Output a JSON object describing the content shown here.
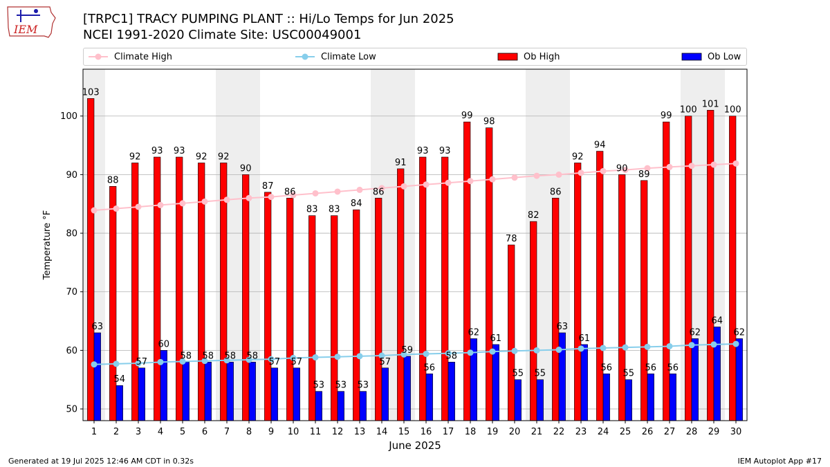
{
  "header": {
    "title_line1": "[TRPC1] TRACY PUMPING PLANT :: Hi/Lo Temps for Jun 2025",
    "title_line2": "NCEI 1991-2020 Climate Site: USC00049001",
    "logo_text": "IEM"
  },
  "legend": {
    "climate_high": "Climate High",
    "climate_low": "Climate Low",
    "ob_high": "Ob High",
    "ob_low": "Ob Low"
  },
  "footer": {
    "generated": "Generated at 19 Jul 2025 12:46 AM CDT in 0.32s",
    "app": "IEM Autoplot App #17"
  },
  "colors": {
    "ob_high": "#ff0000",
    "ob_low": "#0000ff",
    "climate_high": "#ffc0cb",
    "climate_low": "#87ceeb",
    "weekend_band": "#eeeeee",
    "grid": "#b0b0b0"
  },
  "chart_data": {
    "type": "bar",
    "xlabel": "June 2025",
    "ylabel": "Temperature °F",
    "ylim": [
      48,
      108
    ],
    "yticks": [
      50,
      60,
      70,
      80,
      90,
      100
    ],
    "grid": "horizontal",
    "legend_position": "top",
    "shaded_days": [
      1,
      7,
      8,
      14,
      15,
      21,
      22,
      28,
      29
    ],
    "categories": [
      "1",
      "2",
      "3",
      "4",
      "5",
      "6",
      "7",
      "8",
      "9",
      "10",
      "11",
      "12",
      "13",
      "14",
      "15",
      "16",
      "17",
      "18",
      "19",
      "20",
      "21",
      "22",
      "23",
      "24",
      "25",
      "26",
      "27",
      "28",
      "29",
      "30"
    ],
    "series": [
      {
        "name": "Ob High",
        "kind": "bar",
        "values": [
          103,
          88,
          92,
          93,
          93,
          92,
          92,
          90,
          87,
          86,
          83,
          83,
          84,
          86,
          91,
          93,
          93,
          99,
          98,
          78,
          82,
          86,
          92,
          94,
          90,
          89,
          99,
          100,
          101,
          100
        ]
      },
      {
        "name": "Ob Low",
        "kind": "bar",
        "values": [
          63,
          54,
          57,
          60,
          58,
          58,
          58,
          58,
          57,
          57,
          53,
          53,
          53,
          57,
          59,
          56,
          58,
          62,
          61,
          55,
          55,
          63,
          61,
          56,
          55,
          56,
          56,
          62,
          64,
          62
        ]
      },
      {
        "name": "Climate High",
        "kind": "line",
        "values": [
          83.9,
          84.2,
          84.5,
          84.8,
          85.1,
          85.4,
          85.7,
          86.0,
          86.2,
          86.5,
          86.8,
          87.1,
          87.4,
          87.7,
          88.0,
          88.3,
          88.6,
          88.9,
          89.2,
          89.5,
          89.8,
          90.0,
          90.3,
          90.6,
          90.8,
          91.1,
          91.3,
          91.5,
          91.7,
          91.9
        ]
      },
      {
        "name": "Climate Low",
        "kind": "line",
        "values": [
          57.6,
          57.7,
          57.8,
          58.0,
          58.1,
          58.2,
          58.3,
          58.4,
          58.5,
          58.7,
          58.8,
          58.9,
          59.0,
          59.1,
          59.3,
          59.4,
          59.5,
          59.6,
          59.8,
          59.9,
          60.0,
          60.1,
          60.3,
          60.4,
          60.5,
          60.6,
          60.7,
          60.9,
          61.0,
          61.1
        ]
      }
    ]
  }
}
